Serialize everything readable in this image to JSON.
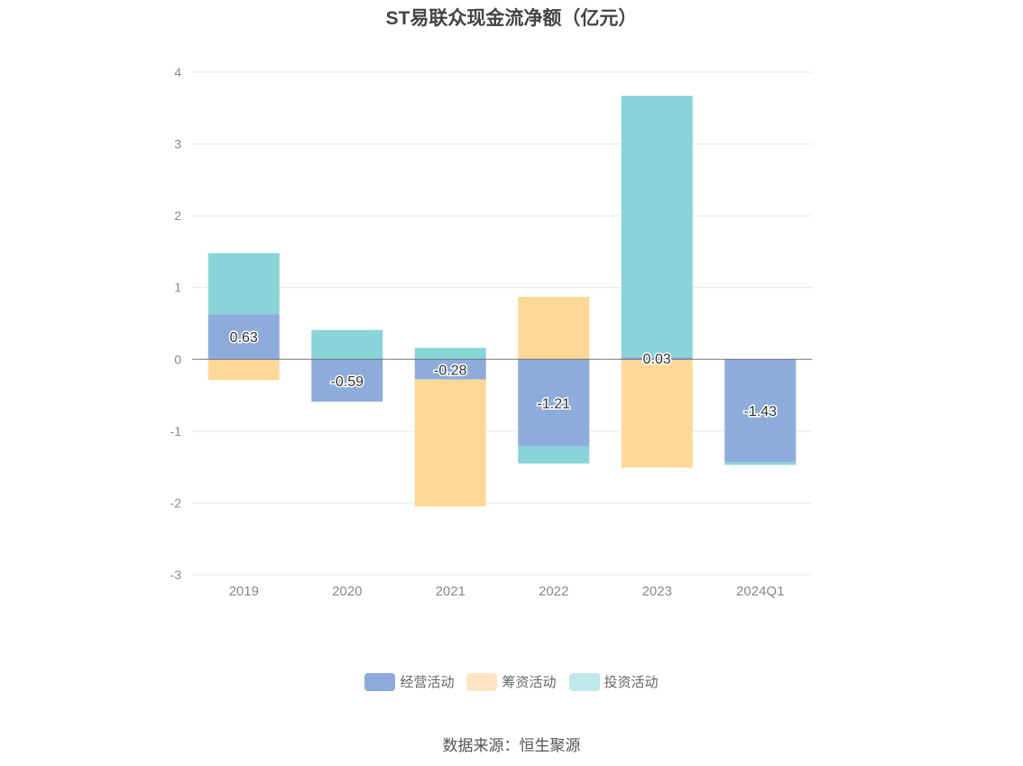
{
  "title": "ST易联众现金流净额（亿元）",
  "source": "数据来源：恒生聚源",
  "colors": {
    "operating": "#8eacdb",
    "financing": "#ffd898",
    "investing": "#88d4d8",
    "grid": "#e3e6ef",
    "zero_line": "#6e7079",
    "tick_text": "#888888"
  },
  "legend": [
    {
      "name": "经营活动",
      "color": "#8eacdb"
    },
    {
      "name": "筹资活动",
      "color": "#ffe6c2"
    },
    {
      "name": "投资活动",
      "color": "#bfe8ea"
    }
  ],
  "chart_data": {
    "type": "bar",
    "stacked": true,
    "title": "ST易联众现金流净额（亿元）",
    "categories": [
      "2019",
      "2020",
      "2021",
      "2022",
      "2023",
      "2024Q1"
    ],
    "ylim": [
      -3,
      4
    ],
    "yticks": [
      "4",
      "3",
      "2",
      "1",
      "0",
      "-1",
      "-2",
      "-3"
    ],
    "grid": true,
    "legend_position": "bottom",
    "series": [
      {
        "name": "经营活动",
        "values": [
          0.63,
          -0.59,
          -0.28,
          -1.21,
          0.03,
          -1.43
        ],
        "labels": [
          "0.63",
          "-0.59",
          "-0.28",
          "-1.21",
          "0.03",
          "-1.43"
        ]
      },
      {
        "name": "筹资活动",
        "values": [
          -0.29,
          0.0,
          -1.77,
          0.87,
          -1.51,
          0.0
        ]
      },
      {
        "name": "投资活动",
        "values": [
          0.85,
          0.41,
          0.16,
          -0.24,
          3.64,
          -0.04
        ]
      }
    ]
  }
}
